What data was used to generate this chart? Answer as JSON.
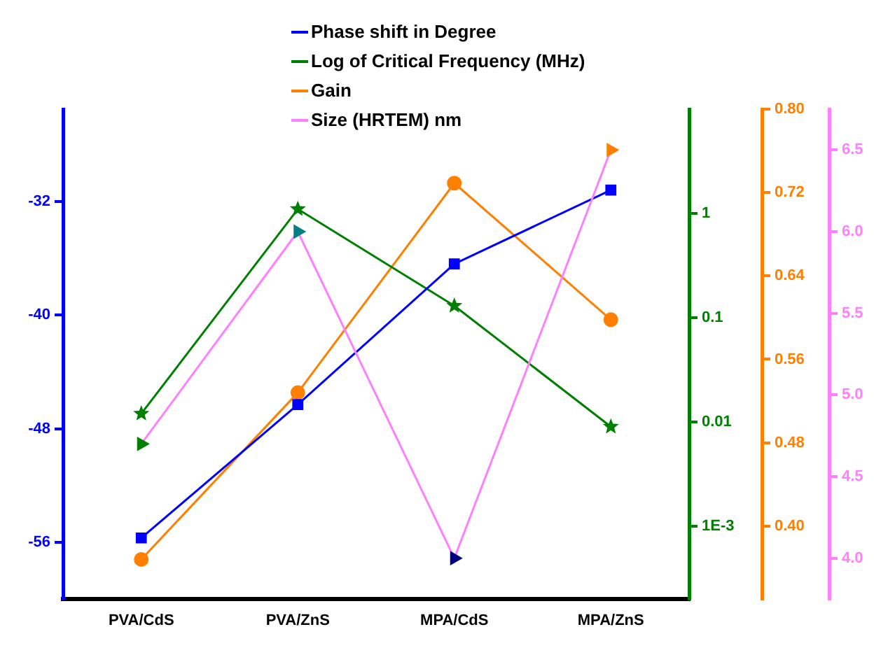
{
  "chart_data": [
    {
      "type": "line",
      "categories": [
        "PVA/CdS",
        "PVA/ZnS",
        "MPA/CdS",
        "MPA/ZnS"
      ],
      "series": [
        {
          "name": "Phase shift in Degree",
          "color": "#0000ff",
          "values": [
            -55.7,
            -46.3,
            -36.4,
            -31.2
          ],
          "marker": "square"
        },
        {
          "name": "Log of Critical Frequency (MHz)",
          "color": "#008000",
          "values": [
            0.012,
            1.1,
            0.13,
            0.009
          ],
          "axis": "y2",
          "marker": "star"
        },
        {
          "name": "Gain",
          "color": "#ff8000",
          "values": [
            0.368,
            0.528,
            0.729,
            0.598
          ],
          "axis": "y3",
          "marker": "circle"
        }
      ],
      "ylim": [
        -60,
        -25.5
      ],
      "yticks": [
        -56,
        -48,
        -40,
        -32
      ],
      "y2lim": [
        0.0002,
        10
      ],
      "y2ticks": [
        {
          "value": 0.001,
          "label": "1E-3"
        },
        0.01,
        0.1,
        1
      ],
      "y3lim": [
        0.33,
        0.8
      ],
      "y3ticks": [
        {
          "value": 0.4,
          "label": "0.40"
        },
        0.48,
        0.56,
        0.64,
        0.72,
        {
          "value": 0.8,
          "label": "0.80"
        }
      ],
      "log": "y2",
      "grid": false,
      "legend": "top"
    },
    {
      "type": "line",
      "categories": [
        null,
        null,
        null,
        null
      ],
      "series": [
        {
          "name": "Size (HRTEM) nm",
          "color": "#ff80ff",
          "colors": [
            "#008000",
            "#008080",
            "#000080",
            "#ff8000"
          ],
          "values": [
            4.7,
            6.0,
            4.0,
            6.5
          ],
          "marker": "triangle"
        }
      ],
      "ylim": [
        3.75,
        6.75
      ],
      "yticks": [
        {
          "value": 4,
          "label": "4.0"
        },
        4.5,
        {
          "value": 5,
          "label": "5.0"
        },
        5.5,
        {
          "value": 6,
          "label": "6.0"
        },
        6.5
      ],
      "grid": false,
      "legend": "top"
    }
  ]
}
